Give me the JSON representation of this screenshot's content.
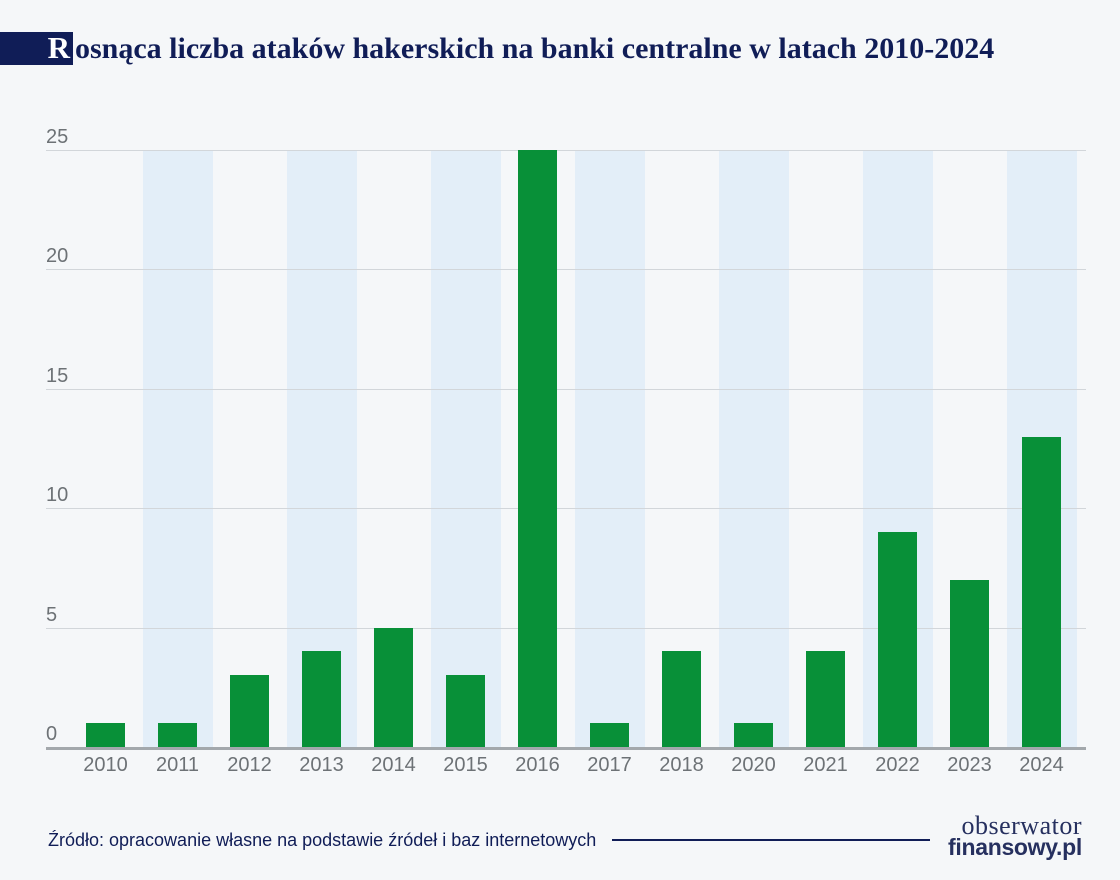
{
  "title": {
    "initial": "R",
    "rest": "osnąca liczba ataków hakerskich na banki centralne w latach 2010-2024"
  },
  "footer": {
    "source": "Źródło: opracowanie własne na podstawie źródeł i baz internetowych",
    "logo_line1": "obserwator",
    "logo_line2": "finansowy.pl"
  },
  "colors": {
    "bar": "#089038",
    "band": "#e3eef8",
    "background": "#f5f7f9",
    "grid": "#d2d6da",
    "axis": "#a3a8ac",
    "tick": "#6d7276",
    "navy": "#101d57",
    "logo": "#26305f"
  },
  "chart_data": {
    "type": "bar",
    "title": "Rosnąca liczba ataków hakerskich na banki centralne w latach 2010-2024",
    "categories": [
      "2010",
      "2011",
      "2012",
      "2013",
      "2014",
      "2015",
      "2016",
      "2017",
      "2018",
      "2020",
      "2021",
      "2022",
      "2023",
      "2024"
    ],
    "values": [
      1,
      1,
      3,
      4,
      5,
      3,
      25,
      1,
      4,
      1,
      4,
      9,
      7,
      13
    ],
    "xlabel": "",
    "ylabel": "",
    "yticks": [
      0,
      5,
      10,
      15,
      20,
      25
    ],
    "ylim": [
      0,
      25
    ],
    "grid": true,
    "legend": "none",
    "column_band_pattern": "alternate-odd-columns"
  }
}
